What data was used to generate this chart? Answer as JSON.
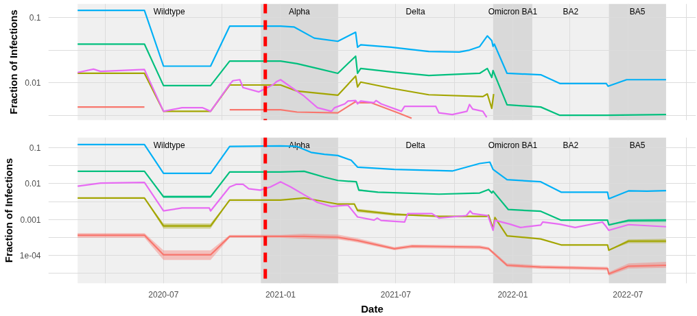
{
  "chart_data": [
    {
      "type": "line",
      "ylabel": "Fraction of Infections",
      "log": "y",
      "grid": true,
      "tick_labels": "y",
      "line_style": "solid",
      "xlim": [
        "2020-01-02",
        "2022-10-16"
      ],
      "ylim": [
        0.0027,
        0.16
      ],
      "xticks": [
        {
          "value": "2020-04-01",
          "label": null
        },
        {
          "value": "2020-07-01",
          "label": null
        },
        {
          "value": "2020-10-01",
          "label": null
        },
        {
          "value": "2021-01-01",
          "label": null
        },
        {
          "value": "2021-04-01",
          "label": null
        },
        {
          "value": "2021-07-01",
          "label": null
        },
        {
          "value": "2021-10-01",
          "label": null
        },
        {
          "value": "2022-01-01",
          "label": null
        },
        {
          "value": "2022-04-01",
          "label": null
        },
        {
          "value": "2022-07-01",
          "label": null
        },
        {
          "value": "2022-10-01",
          "label": null
        }
      ],
      "yticks": [
        {
          "value": 0.00316,
          "label": null
        },
        0.01,
        {
          "value": 0.0316,
          "label": null
        },
        0.1
      ],
      "bands": [
        {
          "axis": "x",
          "from": "2020-02-17",
          "to": "2020-12-01",
          "label": "Wildtype",
          "color": "#f0f0f0"
        },
        {
          "axis": "x",
          "from": "2020-12-01",
          "to": "2021-04-01",
          "label": "Alpha",
          "color": "#d9d9d9"
        },
        {
          "axis": "x",
          "from": "2021-04-01",
          "to": "2021-12-01",
          "label": "Delta",
          "color": "#f0f0f0"
        },
        {
          "axis": "x",
          "from": "2021-12-01",
          "to": "2022-02-01",
          "label": "Omicron BA1",
          "color": "#d9d9d9"
        },
        {
          "axis": "x",
          "from": "2022-02-01",
          "to": "2022-06-01",
          "label": "BA2",
          "color": "#f0f0f0"
        },
        {
          "axis": "x",
          "from": "2022-06-01",
          "to": "2022-08-30",
          "label": "BA5",
          "color": "#d9d9d9"
        }
      ],
      "ref_lines": [
        {
          "axis": "x",
          "value": "2020-12-08",
          "label": null,
          "color": "#ff0000",
          "line_style": "dashed"
        }
      ],
      "series": [
        {
          "color": "#F8766D",
          "x": [
            "2020-02-17",
            "2020-06-01",
            "2020-08-01",
            "2020-10-13",
            "2021-01-01",
            "2021-01-27",
            "2021-04-01",
            "2021-04-29",
            "2021-05-02",
            "2021-05-23",
            "2021-07-05",
            "2021-07-26"
          ],
          "values": [
            0.0043,
            0.0043,
            null,
            0.0039,
            0.0039,
            0.0036,
            0.0035,
            0.0052,
            0.005,
            0.005,
            0.0035,
            0.0029
          ]
        },
        {
          "color": "#A3A500",
          "x": [
            "2020-02-17",
            "2020-06-01",
            "2020-07-01",
            "2020-09-13",
            "2020-10-13",
            "2021-01-01",
            "2021-01-27",
            "2021-04-01",
            "2021-04-29",
            "2021-05-02",
            "2021-05-07",
            "2021-06-24",
            "2021-08-22",
            "2021-11-15",
            "2021-11-22",
            "2021-11-29",
            "2021-12-02"
          ],
          "values": [
            0.014,
            0.014,
            0.0037,
            0.0037,
            0.0093,
            0.0093,
            0.0075,
            0.0065,
            0.0127,
            0.0087,
            0.0103,
            0.0083,
            0.0066,
            0.0062,
            0.0068,
            0.0041,
            0.0068
          ]
        },
        {
          "color": "#00BF7D",
          "x": [
            "2020-02-17",
            "2020-06-01",
            "2020-07-01",
            "2020-09-13",
            "2020-10-13",
            "2021-01-01",
            "2021-01-27",
            "2021-02-28",
            "2021-04-01",
            "2021-04-29",
            "2021-05-02",
            "2021-05-07",
            "2021-06-24",
            "2021-08-22",
            "2021-11-10",
            "2021-11-22",
            "2021-11-29",
            "2021-12-01",
            "2021-12-23",
            "2022-02-14",
            "2022-03-16",
            "2022-05-28",
            "2022-08-30"
          ],
          "values": [
            0.039,
            0.039,
            0.0091,
            0.0091,
            0.0215,
            0.0215,
            0.0196,
            0.0166,
            0.014,
            0.0255,
            0.014,
            0.0166,
            0.0147,
            0.013,
            0.014,
            0.0166,
            0.0121,
            0.0154,
            0.00464,
            0.0043,
            0.00322,
            0.00322,
            0.0033
          ]
        },
        {
          "color": "#00B0F6",
          "x": [
            "2020-02-17",
            "2020-06-01",
            "2020-07-01",
            "2020-09-13",
            "2020-10-13",
            "2021-01-01",
            "2021-01-22",
            "2021-02-23",
            "2021-04-01",
            "2021-04-29",
            "2021-05-02",
            "2021-05-07",
            "2021-06-24",
            "2021-08-22",
            "2021-10-09",
            "2021-10-25",
            "2021-11-10",
            "2021-11-22",
            "2021-11-29",
            "2021-12-01",
            "2021-12-03",
            "2021-12-23",
            "2022-02-14",
            "2022-03-16",
            "2022-05-28",
            "2022-05-31",
            "2022-06-29",
            "2022-08-30"
          ],
          "values": [
            0.127,
            0.127,
            0.018,
            0.018,
            0.073,
            0.073,
            0.071,
            0.048,
            0.043,
            0.059,
            0.035,
            0.038,
            0.035,
            0.03,
            0.0295,
            0.0316,
            0.0357,
            0.052,
            0.044,
            0.036,
            0.039,
            0.014,
            0.0133,
            0.0098,
            0.0098,
            0.0089,
            0.0112,
            0.0112
          ]
        },
        {
          "color": "#E76BF3",
          "x": [
            "2020-02-17",
            "2020-03-13",
            "2020-03-24",
            "2020-06-01",
            "2020-07-01",
            "2020-07-30",
            "2020-08-31",
            "2020-09-13",
            "2020-10-13",
            "2020-10-18",
            "2020-10-29",
            "2020-11-03",
            "2020-11-28",
            "2020-12-21",
            "2020-12-26",
            "2021-01-01",
            "2021-01-17",
            "2021-02-07",
            "2021-02-28",
            "2021-03-22",
            "2021-03-27",
            "2021-04-12",
            "2021-04-17",
            "2021-04-29",
            "2021-05-02",
            "2021-05-07",
            "2021-05-28",
            "2021-05-31",
            "2021-06-08",
            "2021-07-10",
            "2021-07-15",
            "2021-09-02",
            "2021-09-07",
            "2021-09-28",
            "2021-10-21",
            "2021-10-25",
            "2021-10-30",
            "2021-11-15",
            "2021-11-21"
          ],
          "values": [
            0.0144,
            0.0162,
            0.015,
            0.016,
            0.0037,
            0.0042,
            0.0042,
            0.0037,
            0.0095,
            0.0108,
            0.0112,
            0.0085,
            0.0073,
            0.0095,
            0.0105,
            0.0112,
            0.0087,
            0.0063,
            0.0042,
            0.0037,
            0.0042,
            0.0048,
            0.0053,
            0.0054,
            0.0048,
            0.0053,
            0.005,
            0.0054,
            0.0048,
            0.0037,
            0.0044,
            0.0044,
            0.0035,
            0.0033,
            0.0037,
            0.0047,
            0.004,
            0.0037,
            0.003
          ]
        }
      ]
    },
    {
      "type": "line",
      "xlabel": "Date",
      "ylabel": "Fraction of Infections",
      "log": "y",
      "grid": true,
      "line_style": "solid",
      "xlim": [
        "2020-01-02",
        "2022-10-16"
      ],
      "ylim": [
        1.65e-05,
        0.195
      ],
      "xticks": [
        {
          "value": "2020-04-01",
          "label": null
        },
        {
          "value": "2020-07-01",
          "label": "2020-07"
        },
        {
          "value": "2020-10-01",
          "label": null
        },
        {
          "value": "2021-01-01",
          "label": "2021-01"
        },
        {
          "value": "2021-04-01",
          "label": null
        },
        {
          "value": "2021-07-01",
          "label": "2021-07"
        },
        {
          "value": "2021-10-01",
          "label": null
        },
        {
          "value": "2022-01-01",
          "label": "2022-01"
        },
        {
          "value": "2022-04-01",
          "label": null
        },
        {
          "value": "2022-07-01",
          "label": "2022-07"
        },
        {
          "value": "2022-10-01",
          "label": null
        }
      ],
      "yticks": [
        {
          "value": 3.16e-05,
          "label": null
        },
        {
          "value": 0.0001,
          "label": "1e-04"
        },
        {
          "value": 0.000316,
          "label": null
        },
        0.001,
        {
          "value": 0.00316,
          "label": null
        },
        0.01,
        {
          "value": 0.0316,
          "label": null
        },
        0.1
      ],
      "bands": [
        {
          "axis": "x",
          "from": "2020-02-17",
          "to": "2020-12-01",
          "label": "Wildtype",
          "color": "#f0f0f0"
        },
        {
          "axis": "x",
          "from": "2020-12-01",
          "to": "2021-04-01",
          "label": "Alpha",
          "color": "#d9d9d9"
        },
        {
          "axis": "x",
          "from": "2021-04-01",
          "to": "2021-12-01",
          "label": "Delta",
          "color": "#f0f0f0"
        },
        {
          "axis": "x",
          "from": "2021-12-01",
          "to": "2022-02-01",
          "label": "Omicron BA1",
          "color": "#d9d9d9"
        },
        {
          "axis": "x",
          "from": "2022-02-01",
          "to": "2022-06-01",
          "label": "BA2",
          "color": "#f0f0f0"
        },
        {
          "axis": "x",
          "from": "2022-06-01",
          "to": "2022-08-30",
          "label": "BA5",
          "color": "#d9d9d9"
        }
      ],
      "ref_lines": [
        {
          "axis": "x",
          "value": "2020-12-08",
          "label": null,
          "color": "#ff0000",
          "line_style": "dashed"
        }
      ],
      "series": [
        {
          "color": "#F8766D",
          "x": [
            "2020-02-17",
            "2020-06-01",
            "2020-07-01",
            "2020-09-13",
            "2020-10-13",
            "2021-01-01",
            "2021-02-07",
            "2021-04-01",
            "2021-05-02",
            "2021-06-29",
            "2021-07-26",
            "2021-11-10",
            "2021-11-24",
            "2021-12-23",
            "2022-02-14",
            "2022-05-30",
            "2022-06-01",
            "2022-07-02",
            "2022-08-30"
          ],
          "values": [
            0.000366,
            0.000366,
            0.000104,
            0.000104,
            0.000339,
            0.000339,
            0.000339,
            0.00032,
            0.00026,
            0.000153,
            0.00018,
            0.00017,
            0.000154,
            5.3e-05,
            4.7e-05,
            4.3e-05,
            3.05e-05,
            5e-05,
            5.3e-05
          ],
          "lower": [
            0.00031,
            0.00031,
            7.44e-05,
            7.44e-05,
            0.00031,
            0.00031,
            0.00029,
            0.00028,
            0.00023,
            0.00014,
            0.00016,
            0.00015,
            0.00014,
            4.8e-05,
            4.2e-05,
            3.8e-05,
            2.7e-05,
            4.3e-05,
            4.5e-05
          ],
          "upper": [
            0.00042,
            0.00042,
            0.000138,
            0.000138,
            0.00037,
            0.00037,
            0.0004,
            0.00038,
            0.0003,
            0.00017,
            0.0002,
            0.00019,
            0.00017,
            6e-05,
            5.3e-05,
            4.8e-05,
            3.4e-05,
            6e-05,
            6.6e-05
          ]
        },
        {
          "color": "#A3A500",
          "x": [
            "2020-02-17",
            "2020-06-01",
            "2020-07-01",
            "2020-09-13",
            "2020-10-13",
            "2021-01-01",
            "2021-02-07",
            "2021-04-01",
            "2021-04-27",
            "2021-05-02",
            "2021-06-29",
            "2021-09-07",
            "2021-11-21",
            "2021-11-24",
            "2021-12-01",
            "2021-12-04",
            "2021-12-23",
            "2022-02-14",
            "2022-03-18",
            "2022-05-30",
            "2022-06-01",
            "2022-07-02",
            "2022-08-30"
          ],
          "values": [
            0.004,
            0.004,
            0.00066,
            0.00066,
            0.0035,
            0.0035,
            0.004,
            0.0027,
            0.0027,
            0.0018,
            0.0014,
            0.00123,
            0.00123,
            0.00132,
            0.00056,
            0.00114,
            0.00035,
            0.000287,
            0.000196,
            0.000196,
            0.000139,
            0.00025,
            0.00025
          ],
          "lower": [
            0.004,
            0.004,
            0.00056,
            0.00056,
            0.0035,
            0.0035,
            0.004,
            0.0027,
            0.0027,
            0.0016,
            0.00128,
            0.00123,
            0.00123,
            0.00132,
            0.00056,
            0.00114,
            0.00035,
            0.000287,
            0.000196,
            0.000196,
            0.000139,
            0.00022,
            0.00022
          ],
          "upper": [
            0.004,
            0.004,
            0.00078,
            0.00078,
            0.0035,
            0.0035,
            0.004,
            0.0027,
            0.0027,
            0.002,
            0.00152,
            0.00123,
            0.00123,
            0.00132,
            0.00056,
            0.00114,
            0.00035,
            0.000287,
            0.000196,
            0.000196,
            0.000139,
            0.00028,
            0.00029
          ]
        },
        {
          "color": "#00BF7D",
          "x": [
            "2020-02-17",
            "2020-06-01",
            "2020-07-01",
            "2020-09-13",
            "2020-10-13",
            "2021-01-01",
            "2021-02-07",
            "2021-03-11",
            "2021-04-01",
            "2021-04-30",
            "2021-05-04",
            "2021-06-03",
            "2021-09-07",
            "2021-11-10",
            "2021-11-24",
            "2021-11-29",
            "2021-12-01",
            "2021-12-25",
            "2022-02-14",
            "2022-03-18",
            "2022-05-30",
            "2022-06-01",
            "2022-07-02",
            "2022-08-30"
          ],
          "values": [
            0.0222,
            0.0222,
            0.0043,
            0.0043,
            0.0212,
            0.0212,
            0.0222,
            0.0152,
            0.0123,
            0.0113,
            0.0066,
            0.0058,
            0.0051,
            0.0055,
            0.0069,
            0.0055,
            0.0062,
            0.0019,
            0.0017,
            0.00096,
            0.00096,
            0.00071,
            0.00094,
            0.00096
          ],
          "lower": [
            0.0222,
            0.0222,
            0.004,
            0.004,
            0.0212,
            0.0212,
            0.0222,
            0.0152,
            0.0123,
            0.0113,
            0.0062,
            0.0058,
            0.0051,
            0.0055,
            0.0069,
            0.0055,
            0.0062,
            0.0019,
            0.0017,
            0.00096,
            0.00096,
            0.00071,
            0.00085,
            0.00085
          ],
          "upper": [
            0.0222,
            0.0222,
            0.0047,
            0.0047,
            0.0212,
            0.0212,
            0.0222,
            0.0152,
            0.0123,
            0.0113,
            0.0071,
            0.0058,
            0.0051,
            0.0055,
            0.0069,
            0.0055,
            0.0062,
            0.0019,
            0.0017,
            0.00096,
            0.00096,
            0.00071,
            0.00102,
            0.00104
          ]
        },
        {
          "color": "#00B0F6",
          "x": [
            "2020-02-17",
            "2020-06-01",
            "2020-07-01",
            "2020-09-13",
            "2020-10-13",
            "2021-01-01",
            "2021-01-27",
            "2021-02-18",
            "2021-03-11",
            "2021-04-01",
            "2021-04-22",
            "2021-05-02",
            "2021-06-29",
            "2021-09-28",
            "2021-11-10",
            "2021-11-26",
            "2021-12-01",
            "2021-12-23",
            "2022-02-14",
            "2022-03-18",
            "2022-05-30",
            "2022-06-01",
            "2022-07-02",
            "2022-07-31",
            "2022-08-30"
          ],
          "values": [
            0.123,
            0.123,
            0.0195,
            0.0195,
            0.109,
            0.113,
            0.109,
            0.0746,
            0.066,
            0.061,
            0.045,
            0.029,
            0.0251,
            0.0226,
            0.0366,
            0.04,
            0.025,
            0.0129,
            0.0113,
            0.0058,
            0.0058,
            0.0038,
            0.0063,
            0.0062,
            0.0064
          ]
        },
        {
          "color": "#E76BF3",
          "x": [
            "2020-02-17",
            "2020-03-24",
            "2020-06-01",
            "2020-07-01",
            "2020-07-30",
            "2020-09-11",
            "2020-09-13",
            "2020-10-13",
            "2020-10-23",
            "2020-11-03",
            "2020-11-12",
            "2020-11-30",
            "2020-12-16",
            "2021-01-01",
            "2021-01-17",
            "2021-02-07",
            "2021-02-28",
            "2021-03-22",
            "2021-04-01",
            "2021-04-17",
            "2021-05-02",
            "2021-05-28",
            "2021-06-02",
            "2021-06-08",
            "2021-07-15",
            "2021-07-20",
            "2021-08-27",
            "2021-09-07",
            "2021-10-20",
            "2021-10-26",
            "2021-10-30",
            "2021-11-23",
            "2021-12-01",
            "2021-12-04",
            "2021-12-28",
            "2022-01-13",
            "2022-02-14",
            "2022-02-17",
            "2022-03-16",
            "2022-04-09",
            "2022-05-22",
            "2022-05-28",
            "2022-06-01",
            "2022-07-02",
            "2022-08-30"
          ],
          "values": [
            0.0085,
            0.0104,
            0.0108,
            0.00174,
            0.0021,
            0.0021,
            0.00174,
            0.0081,
            0.0096,
            0.0096,
            0.0072,
            0.0066,
            0.0081,
            0.0113,
            0.0081,
            0.0049,
            0.003,
            0.0023,
            0.0024,
            0.0025,
            0.00118,
            0.00096,
            0.0011,
            0.00094,
            0.00085,
            0.00146,
            0.00146,
            0.0011,
            0.00129,
            0.00174,
            0.00146,
            0.00129,
            0.0005,
            0.00095,
            0.00074,
            0.0006,
            0.0007,
            0.00085,
            0.00074,
            0.0006,
            0.00085,
            0.00063,
            0.0005,
            0.00072,
            0.00063
          ]
        }
      ]
    }
  ]
}
